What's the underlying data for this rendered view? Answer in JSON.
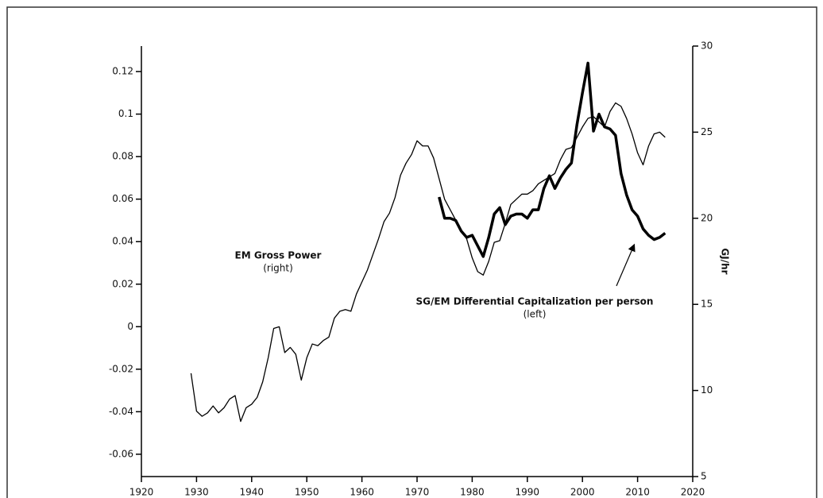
{
  "chart_data": {
    "type": "line",
    "y2label": "GJ/hr",
    "annotations": [
      "EM Gross Power",
      "(right)",
      "SG/EM Differential Capitalization per person",
      "(left)"
    ],
    "series": [
      {
        "name": "EM Gross Power",
        "color": "#000000",
        "axis": "y2",
        "x": [
          1929,
          1930,
          1931,
          1932,
          1933,
          1934,
          1935,
          1936,
          1937,
          1938,
          1939,
          1940,
          1941,
          1942,
          1943,
          1944,
          1945,
          1946,
          1947,
          1948,
          1949,
          1950,
          1951,
          1952,
          1953,
          1954,
          1955,
          1956,
          1957,
          1958,
          1959,
          1960,
          1961,
          1962,
          1963,
          1964,
          1965,
          1966,
          1967,
          1968,
          1969,
          1970,
          1971,
          1972,
          1973,
          1974,
          1975,
          1976,
          1977,
          1978,
          1979,
          1980,
          1981,
          1982,
          1983,
          1984,
          1985,
          1986,
          1987,
          1988,
          1989,
          1990,
          1991,
          1992,
          1993,
          1994,
          1995,
          1996,
          1997,
          1998,
          1999,
          2000,
          2001,
          2002,
          2003,
          2004,
          2005,
          2006,
          2007,
          2008,
          2009,
          2010,
          2011,
          2012,
          2013,
          2014,
          2015
        ],
        "values": [
          11.0,
          8.8,
          8.5,
          8.7,
          9.1,
          8.7,
          9.0,
          9.5,
          9.7,
          8.2,
          9.0,
          9.2,
          9.6,
          10.5,
          11.9,
          13.6,
          13.7,
          12.2,
          12.5,
          12.1,
          10.6,
          11.9,
          12.7,
          12.6,
          12.9,
          13.1,
          14.2,
          14.6,
          14.7,
          14.6,
          15.6,
          16.3,
          17.0,
          17.9,
          18.8,
          19.8,
          20.3,
          21.2,
          22.5,
          23.2,
          23.7,
          24.5,
          24.2,
          24.2,
          23.5,
          22.3,
          21.1,
          20.5,
          19.9,
          19.3,
          18.8,
          17.7,
          16.9,
          16.7,
          17.5,
          18.6,
          18.7,
          19.7,
          20.8,
          21.1,
          21.4,
          21.4,
          21.6,
          22.0,
          22.2,
          22.4,
          22.6,
          23.4,
          24.0,
          24.1,
          24.7,
          25.3,
          25.8,
          25.9,
          25.6,
          25.3,
          26.2,
          26.7,
          26.5,
          25.8,
          24.9,
          23.8,
          23.1,
          24.2,
          24.9,
          25.0,
          24.7
        ]
      },
      {
        "name": "SG/EM Differential Capitalization per person",
        "color": "#000000",
        "axis": "y",
        "x": [
          1974,
          1975,
          1976,
          1977,
          1978,
          1979,
          1980,
          1981,
          1982,
          1983,
          1984,
          1985,
          1986,
          1987,
          1988,
          1989,
          1990,
          1991,
          1992,
          1993,
          1994,
          1995,
          1996,
          1997,
          1998,
          1999,
          2000,
          2001,
          2002,
          2003,
          2004,
          2005,
          2006,
          2007,
          2008,
          2009,
          2010,
          2011,
          2012,
          2013,
          2014,
          2015
        ],
        "values": [
          0.061,
          0.051,
          0.051,
          0.05,
          0.045,
          0.042,
          0.043,
          0.038,
          0.033,
          0.042,
          0.053,
          0.056,
          0.048,
          0.052,
          0.053,
          0.053,
          0.051,
          0.055,
          0.055,
          0.065,
          0.071,
          0.065,
          0.07,
          0.074,
          0.077,
          0.095,
          0.11,
          0.124,
          0.092,
          0.1,
          0.094,
          0.093,
          0.09,
          0.072,
          0.062,
          0.055,
          0.052,
          0.046,
          0.043,
          0.041,
          0.042,
          0.044
        ]
      }
    ],
    "xlim": [
      1920,
      2020
    ],
    "xticks": [
      1920,
      1930,
      1940,
      1950,
      1960,
      1970,
      1980,
      1990,
      2000,
      2010,
      2020
    ],
    "ylim": [
      -0.0705,
      0.132
    ],
    "yticks": [
      -0.06,
      -0.04,
      -0.02,
      0,
      0.02,
      0.04,
      0.06,
      0.08,
      0.1,
      0.12
    ],
    "y2lim": [
      5,
      30
    ],
    "y2ticks": [
      5,
      10,
      15,
      20,
      25,
      30
    ],
    "grid": false
  }
}
